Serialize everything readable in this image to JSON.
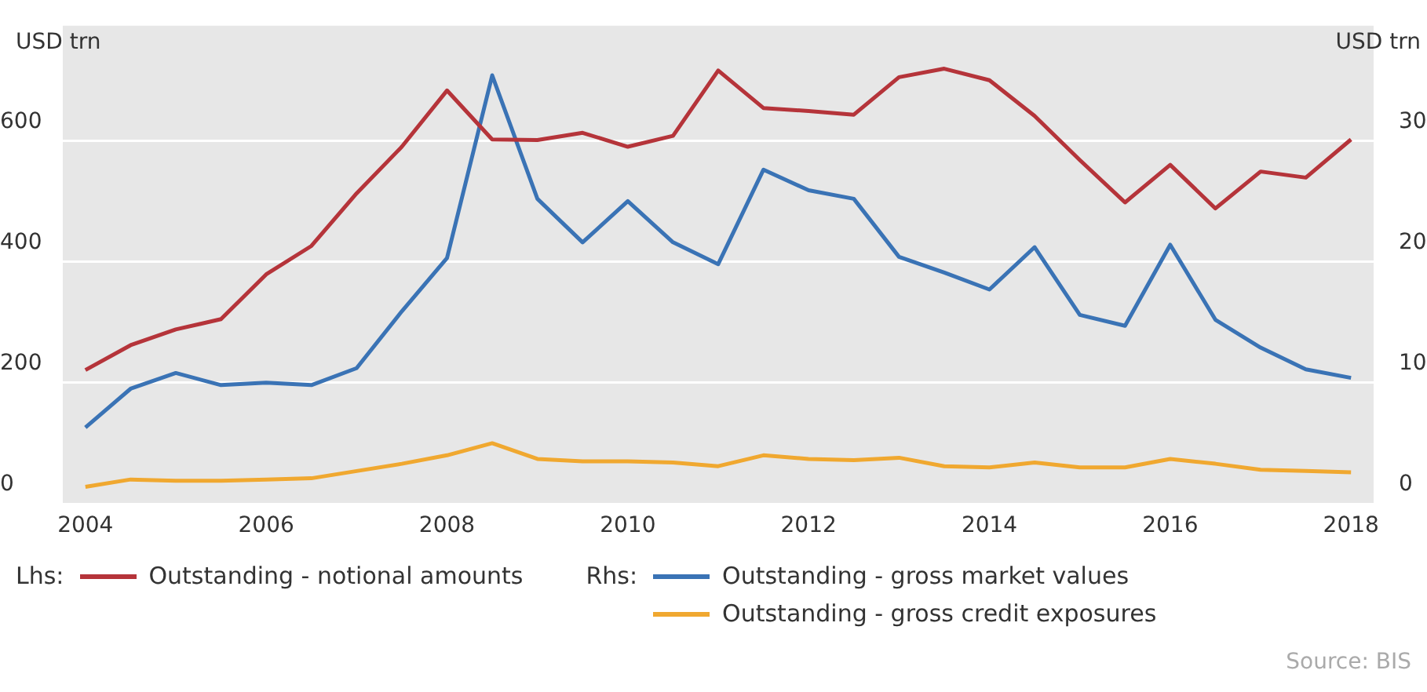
{
  "chart_data": {
    "type": "line",
    "ylabel": "USD trn",
    "y2label": "USD trn",
    "x": [
      2004,
      2004.5,
      2005,
      2005.5,
      2006,
      2006.5,
      2007,
      2007.5,
      2008,
      2008.5,
      2009,
      2009.5,
      2010,
      2010.5,
      2011,
      2011.5,
      2012,
      2012.5,
      2013,
      2013.5,
      2014,
      2014.5,
      2015,
      2015.5,
      2016,
      2016.5,
      2017,
      2017.5,
      2018
    ],
    "xlim": [
      2003.75,
      2018.25
    ],
    "xticks": [
      2004,
      2006,
      2008,
      2010,
      2012,
      2014,
      2016,
      2018
    ],
    "ylim": [
      0,
      790
    ],
    "yticks": [
      0,
      200,
      400,
      600
    ],
    "y2lim": [
      0,
      39.5
    ],
    "y2ticks": [
      0,
      10,
      20,
      30
    ],
    "series": [
      {
        "name": "Outstanding - notional amounts",
        "color": "#b5343a",
        "values": [
          221,
          262,
          288,
          305,
          379,
          426,
          513,
          590,
          683,
          602,
          601,
          613,
          590,
          608,
          716,
          654,
          649,
          643,
          705,
          719,
          700,
          641,
          568,
          498,
          560,
          488,
          549,
          539,
          602
        ]
      },
      {
        "name": "Outstanding - gross market values",
        "color": "#3a73b5",
        "axis": "y2",
        "values": [
          6.3,
          9.5,
          10.8,
          9.8,
          10.0,
          9.8,
          11.2,
          15.9,
          20.3,
          35.4,
          25.2,
          21.6,
          25.0,
          21.6,
          19.8,
          27.6,
          25.9,
          25.2,
          20.4,
          19.1,
          17.7,
          21.2,
          15.6,
          14.7,
          21.4,
          15.2,
          12.9,
          11.1,
          10.4
        ]
      },
      {
        "name": "Outstanding - gross credit exposures",
        "color": "#f0a830",
        "axis": "y2",
        "values": [
          1.4,
          2.0,
          1.9,
          1.9,
          2.0,
          2.1,
          2.7,
          3.3,
          4.0,
          5.0,
          3.7,
          3.5,
          3.5,
          3.4,
          3.1,
          4.0,
          3.7,
          3.6,
          3.8,
          3.1,
          3.0,
          3.4,
          3.0,
          3.0,
          3.7,
          3.3,
          2.8,
          2.7,
          2.6
        ]
      }
    ],
    "grid": "y",
    "legend": "bottom",
    "marker": "none",
    "line_style": "solid",
    "annotations": [
      "Lhs:",
      "Rhs:",
      "Source: BIS"
    ]
  }
}
